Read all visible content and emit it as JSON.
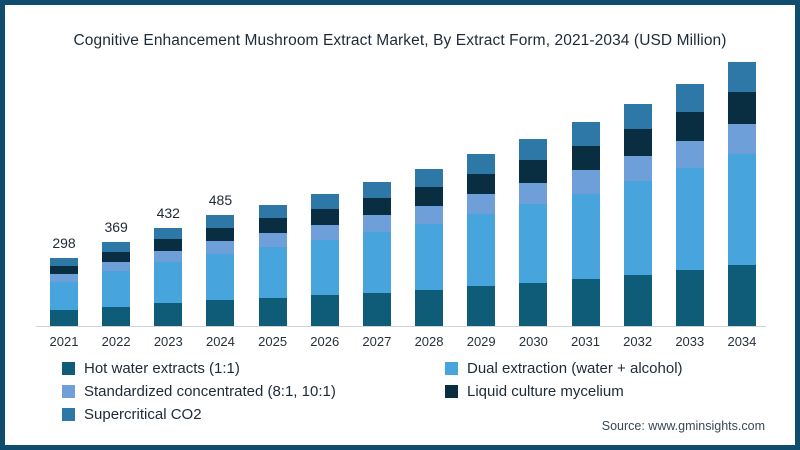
{
  "title": "Cognitive Enhancement Mushroom Extract Market, By Extract Form, 2021-2034 (USD Million)",
  "source": "Source: www.gminsights.com",
  "frame": {
    "border_color": "#0F4C6E",
    "background": "#FFFFFF"
  },
  "chart_data": {
    "type": "bar",
    "stacked": true,
    "orientation": "vertical",
    "unit": "USD Million",
    "categories": [
      "2021",
      "2022",
      "2023",
      "2024",
      "2025",
      "2026",
      "2027",
      "2028",
      "2029",
      "2030",
      "2031",
      "2032",
      "2033",
      "2034"
    ],
    "series": [
      {
        "name": "Hot water extracts (1:1)",
        "key": "hot-water-extracts",
        "color": "#0E5C77",
        "values": [
          69,
          85,
          99,
          112,
          123,
          134,
          146,
          159,
          174,
          189,
          205,
          224,
          244,
          266
        ]
      },
      {
        "name": "Dual extraction (water + alcohol)",
        "key": "dual-extraction",
        "color": "#47A4DD",
        "values": [
          125,
          155,
          182,
          204,
          224,
          244,
          266,
          290,
          317,
          345,
          375,
          410,
          447,
          487
        ]
      },
      {
        "name": "Standardized concentrated (8:1, 10:1)",
        "key": "standardized-concentrated",
        "color": "#6F9FD8",
        "values": [
          34,
          42,
          50,
          56,
          61,
          67,
          73,
          79,
          87,
          95,
          103,
          112,
          122,
          133
        ]
      },
      {
        "name": "Liquid culture mycelium",
        "key": "liquid-culture-mycelium",
        "color": "#0A2E41",
        "values": [
          36,
          44,
          52,
          58,
          64,
          69,
          76,
          83,
          90,
          99,
          107,
          117,
          128,
          139
        ]
      },
      {
        "name": "Supercritical CO2",
        "key": "supercritical-co2",
        "color": "#2E78A8",
        "values": [
          34,
          43,
          49,
          55,
          61,
          67,
          72,
          79,
          87,
          94,
          103,
          112,
          122,
          133
        ]
      }
    ],
    "totals": [
      298,
      369,
      432,
      485,
      533,
      581,
      633,
      690,
      755,
      822,
      893,
      975,
      1063,
      1158
    ],
    "data_labels": {
      "2021": "298",
      "2022": "369",
      "2023": "432",
      "2024": "485"
    },
    "xlabel": "",
    "ylabel": "",
    "gridlines": false,
    "y_axis_visible": false,
    "legend_position": "bottom-left"
  }
}
